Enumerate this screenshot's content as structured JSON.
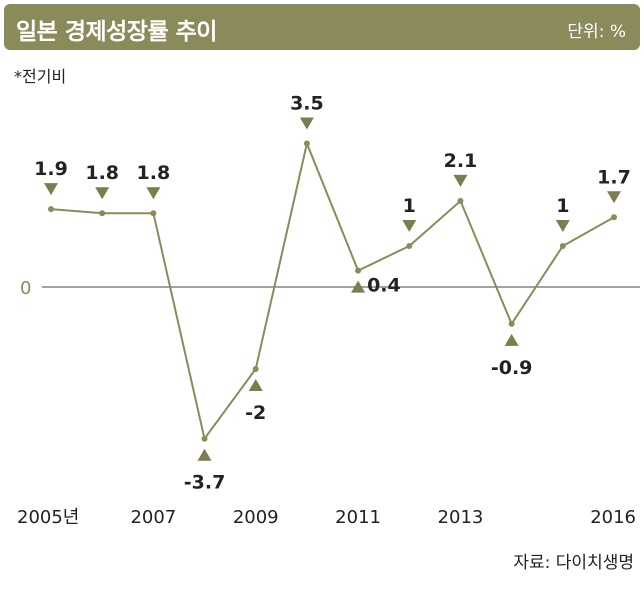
{
  "header": {
    "title": "일본 경제성장률 추이",
    "unit": "단위: %"
  },
  "note": "*전기비",
  "source": "자료: 다이치생명",
  "colors": {
    "header_bg": "#8b8a5a",
    "line": "#8b8a5a",
    "marker": "#7d7c4f",
    "axis": "#444444"
  },
  "chart_data": {
    "type": "line",
    "title": "일본 경제성장률 추이",
    "unit": "%",
    "x": [
      2005,
      2006,
      2007,
      2008,
      2009,
      2010,
      2011,
      2012,
      2013,
      2014,
      2015,
      2016
    ],
    "values": [
      1.9,
      1.8,
      1.8,
      -3.7,
      -2,
      3.5,
      0.4,
      1,
      2.1,
      -0.9,
      1,
      1.7
    ],
    "value_labels": [
      "1.9",
      "1.8",
      "1.8",
      "-3.7",
      "-2",
      "3.5",
      "0.4",
      "1",
      "2.1",
      "-0.9",
      "1",
      "1.7"
    ],
    "marker_direction": [
      "down",
      "down",
      "down",
      "up",
      "up",
      "down",
      "up",
      "down",
      "down",
      "up",
      "down",
      "down"
    ],
    "x_tick_labels": [
      {
        "x": 2005,
        "label": "2005년"
      },
      {
        "x": 2007,
        "label": "2007"
      },
      {
        "x": 2009,
        "label": "2009"
      },
      {
        "x": 2011,
        "label": "2011"
      },
      {
        "x": 2013,
        "label": "2013"
      },
      {
        "x": 2016,
        "label": "2016"
      }
    ],
    "y_tick_labels": [
      {
        "y": 0,
        "label": "0"
      }
    ],
    "ylim": [
      -4.6,
      4.3
    ],
    "grid": false,
    "legend": "none"
  }
}
